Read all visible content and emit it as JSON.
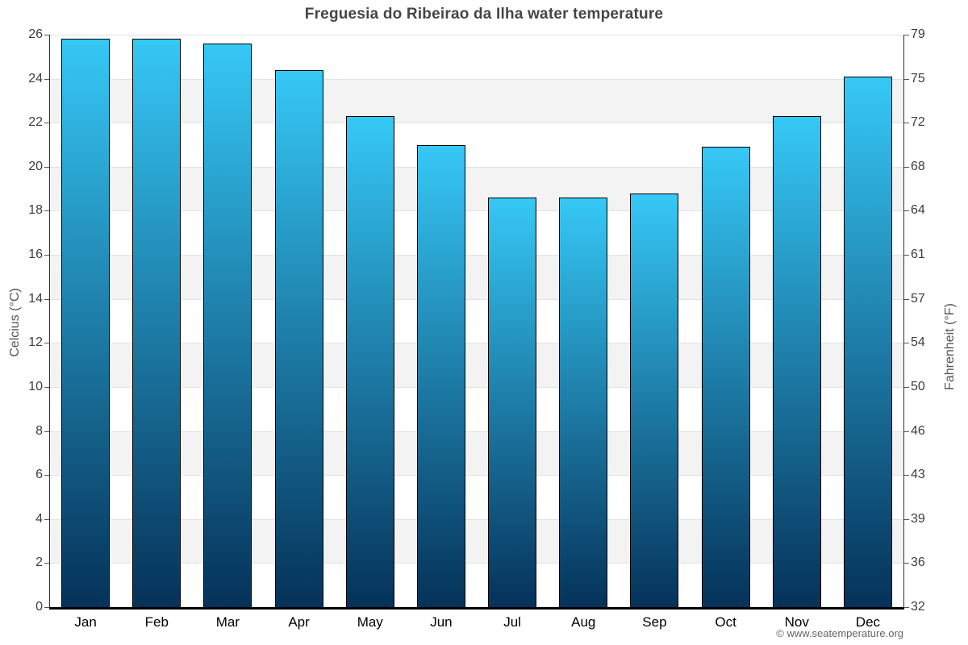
{
  "chart": {
    "title": "Freguesia do Ribeirao da Ilha water temperature",
    "ylabel_left": "Celcius (°C)",
    "ylabel_right": "Fahrenheit (°F)"
  },
  "footer": {
    "copyright": "© www.seatemperature.org"
  },
  "chart_data": {
    "type": "bar",
    "title": "Freguesia do Ribeirao da Ilha water temperature",
    "xlabel": "",
    "ylabel": "Celcius (°C)",
    "ylabel_secondary": "Fahrenheit (°F)",
    "categories": [
      "Jan",
      "Feb",
      "Mar",
      "Apr",
      "May",
      "Jun",
      "Jul",
      "Aug",
      "Sep",
      "Oct",
      "Nov",
      "Dec"
    ],
    "values": [
      25.8,
      25.8,
      25.6,
      24.4,
      22.3,
      21.0,
      18.6,
      18.6,
      18.8,
      20.9,
      22.3,
      24.1
    ],
    "unit": "°C",
    "ylim": [
      0,
      26
    ],
    "yticks_celsius": [
      26,
      24,
      22,
      20,
      18,
      16,
      14,
      12,
      10,
      8,
      6,
      4,
      2,
      0
    ],
    "yticks_fahrenheit": [
      79,
      75,
      72,
      68,
      64,
      61,
      57,
      54,
      50,
      46,
      43,
      39,
      36,
      32
    ],
    "legend": "none",
    "grid": "alternating horizontal bands every 2 degrees C, light gridlines at even ticks",
    "colors": {
      "bar_gradient_top": "#36c8f6",
      "bar_gradient_bottom": "#053259",
      "bar_border": "#000000",
      "band_gray": "#f3f3f3",
      "gridline": "#e2e2e2",
      "axis_line": "#333333",
      "baseline": "#000000",
      "title_text": "#454545",
      "tick_text": "#3d3d3d",
      "footer_text": "#666666"
    }
  }
}
